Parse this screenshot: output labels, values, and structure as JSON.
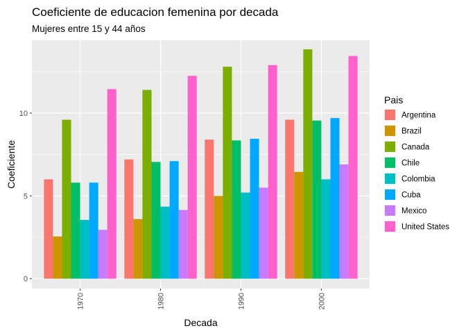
{
  "chart_data": {
    "type": "bar",
    "title": "Coeficiente de educacion femenina por decada",
    "subtitle": "Mujeres entre 15 y 44 años",
    "xlabel": "Decada",
    "ylabel": "Coeficiente",
    "legend_title": "Pais",
    "legend_position": "right",
    "grid": true,
    "categories": [
      "1970",
      "1980",
      "1990",
      "2000"
    ],
    "y_ticks": [
      "0",
      "5",
      "10"
    ],
    "y_tick_values": [
      0,
      5,
      10
    ],
    "ylim": [
      -0.6,
      14.4
    ],
    "series": [
      {
        "name": "Argentina",
        "color": "#F8766D",
        "values": [
          6.0,
          7.2,
          8.4,
          9.6
        ]
      },
      {
        "name": "Brazil",
        "color": "#CD9600",
        "values": [
          2.55,
          3.6,
          5.0,
          6.45
        ]
      },
      {
        "name": "Canada",
        "color": "#7CAE00",
        "values": [
          9.6,
          11.4,
          12.8,
          13.85
        ]
      },
      {
        "name": "Chile",
        "color": "#00BE67",
        "values": [
          5.8,
          7.05,
          8.35,
          9.55
        ]
      },
      {
        "name": "Colombia",
        "color": "#00BFC4",
        "values": [
          3.55,
          4.35,
          5.2,
          6.0
        ]
      },
      {
        "name": "Cuba",
        "color": "#00A9FF",
        "values": [
          5.8,
          7.1,
          8.45,
          9.7
        ]
      },
      {
        "name": "Mexico",
        "color": "#C77CFF",
        "values": [
          2.95,
          4.15,
          5.5,
          6.9
        ]
      },
      {
        "name": "United States",
        "color": "#FF61CC",
        "values": [
          11.45,
          12.25,
          12.9,
          13.45
        ]
      }
    ]
  }
}
